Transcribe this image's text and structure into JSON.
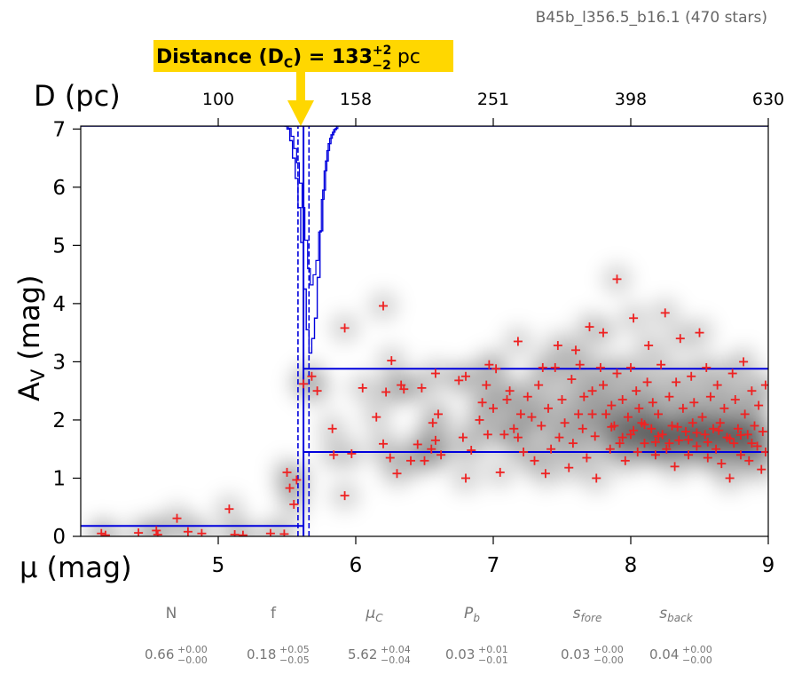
{
  "header": {
    "field_label": "B45b_l356.5_b16.1 (470 stars)"
  },
  "annotation": {
    "prefix": "Distance (D",
    "sub": "C",
    "mid": ") = 133",
    "sup": "+2",
    "subv": "−2",
    "unit": " pc",
    "value_pc": 133,
    "arrow_color": "#FFD700"
  },
  "chart_data": {
    "type": "scatter",
    "title": "",
    "xlabel": "μ (mag)",
    "ylabel_main": "A",
    "ylabel_sub": "V",
    "ylabel_unit": " (mag)",
    "top_axis_label": "D (pc)",
    "xlim": [
      4,
      9
    ],
    "ylim": [
      0,
      7.05
    ],
    "x_ticks": [
      5,
      6,
      7,
      8,
      9
    ],
    "y_ticks": [
      0,
      1,
      2,
      3,
      4,
      5,
      6,
      7
    ],
    "top_ticks": [
      {
        "mu": 5.0,
        "label": "100"
      },
      {
        "mu": 6.0,
        "label": "158"
      },
      {
        "mu": 7.0,
        "label": "251"
      },
      {
        "mu": 8.0,
        "label": "398"
      },
      {
        "mu": 9.0,
        "label": "630"
      }
    ],
    "colors": {
      "stars": "#ee2222",
      "model": "#0000dd",
      "density": "#000000"
    },
    "model": {
      "mu_c": 5.62,
      "mu_c_minus": 5.58,
      "mu_c_plus": 5.66,
      "foreground_av": 0.18,
      "background_av_low": 1.45,
      "background_av_high": 2.88
    },
    "distance_pdf": [
      [
        5.48,
        0.0
      ],
      [
        5.5,
        0.05
      ],
      [
        5.52,
        0.25
      ],
      [
        5.54,
        0.55
      ],
      [
        5.56,
        0.9
      ],
      [
        5.58,
        1.4
      ],
      [
        5.6,
        2.0
      ],
      [
        5.62,
        2.8
      ],
      [
        5.64,
        3.5
      ],
      [
        5.66,
        3.9
      ],
      [
        5.68,
        3.65
      ],
      [
        5.7,
        3.3
      ],
      [
        5.72,
        2.6
      ],
      [
        5.74,
        1.8
      ],
      [
        5.76,
        1.1
      ],
      [
        5.78,
        0.6
      ],
      [
        5.8,
        0.3
      ],
      [
        5.82,
        0.15
      ],
      [
        5.84,
        0.06
      ],
      [
        5.86,
        0.0
      ]
    ],
    "series": [
      {
        "values": [
          [
            4.15,
            0.05
          ],
          [
            4.18,
            0.02
          ],
          [
            4.42,
            0.06
          ],
          [
            4.55,
            0.1
          ],
          [
            4.56,
            0.03
          ],
          [
            4.7,
            0.31
          ],
          [
            4.78,
            0.08
          ],
          [
            4.88,
            0.05
          ],
          [
            5.08,
            0.47
          ],
          [
            5.12,
            0.03
          ],
          [
            5.18,
            0.02
          ],
          [
            5.38,
            0.05
          ],
          [
            5.48,
            0.04
          ],
          [
            5.52,
            0.83
          ],
          [
            5.55,
            0.55
          ],
          [
            5.57,
            0.97
          ],
          [
            5.5,
            1.1
          ],
          [
            5.62,
            2.62
          ],
          [
            5.68,
            2.75
          ],
          [
            5.72,
            2.5
          ],
          [
            5.83,
            1.85
          ],
          [
            5.84,
            1.4
          ],
          [
            5.92,
            3.58
          ],
          [
            5.92,
            0.7
          ],
          [
            5.97,
            1.42
          ],
          [
            6.05,
            2.55
          ],
          [
            6.2,
            3.96
          ],
          [
            6.22,
            2.48
          ],
          [
            6.26,
            3.02
          ],
          [
            6.2,
            1.59
          ],
          [
            6.15,
            2.05
          ],
          [
            6.25,
            1.35
          ],
          [
            6.3,
            1.08
          ],
          [
            6.33,
            2.6
          ],
          [
            6.35,
            2.53
          ],
          [
            6.4,
            1.3
          ],
          [
            6.45,
            1.58
          ],
          [
            6.48,
            2.55
          ],
          [
            6.5,
            1.3
          ],
          [
            6.55,
            1.5
          ],
          [
            6.56,
            1.95
          ],
          [
            6.58,
            2.8
          ],
          [
            6.6,
            2.1
          ],
          [
            6.58,
            1.65
          ],
          [
            6.62,
            1.4
          ],
          [
            6.75,
            2.68
          ],
          [
            6.78,
            1.7
          ],
          [
            6.8,
            2.75
          ],
          [
            6.8,
            1.0
          ],
          [
            6.84,
            1.48
          ],
          [
            6.9,
            2.0
          ],
          [
            6.92,
            2.3
          ],
          [
            6.95,
            2.6
          ],
          [
            6.96,
            1.75
          ],
          [
            6.97,
            2.95
          ],
          [
            7.0,
            2.2
          ],
          [
            7.02,
            2.88
          ],
          [
            7.05,
            1.1
          ],
          [
            7.08,
            1.75
          ],
          [
            7.1,
            2.35
          ],
          [
            7.12,
            2.5
          ],
          [
            7.15,
            1.85
          ],
          [
            7.18,
            1.7
          ],
          [
            7.2,
            2.1
          ],
          [
            7.18,
            3.35
          ],
          [
            7.22,
            1.45
          ],
          [
            7.25,
            2.4
          ],
          [
            7.28,
            2.05
          ],
          [
            7.3,
            1.3
          ],
          [
            7.33,
            2.6
          ],
          [
            7.35,
            1.9
          ],
          [
            7.36,
            2.9
          ],
          [
            7.38,
            1.08
          ],
          [
            7.4,
            2.2
          ],
          [
            7.42,
            1.5
          ],
          [
            7.45,
            2.9
          ],
          [
            7.47,
            3.28
          ],
          [
            7.48,
            1.7
          ],
          [
            7.5,
            2.35
          ],
          [
            7.52,
            1.95
          ],
          [
            7.55,
            1.18
          ],
          [
            7.57,
            2.7
          ],
          [
            7.58,
            1.6
          ],
          [
            7.6,
            3.2
          ],
          [
            7.62,
            2.1
          ],
          [
            7.63,
            2.95
          ],
          [
            7.65,
            1.85
          ],
          [
            7.66,
            2.4
          ],
          [
            7.68,
            1.35
          ],
          [
            7.7,
            3.6
          ],
          [
            7.72,
            2.5
          ],
          [
            7.72,
            2.1
          ],
          [
            7.74,
            1.72
          ],
          [
            7.75,
            1.0
          ],
          [
            7.78,
            2.9
          ],
          [
            7.8,
            3.5
          ],
          [
            7.8,
            2.6
          ],
          [
            7.82,
            2.1
          ],
          [
            7.85,
            1.5
          ],
          [
            7.86,
            2.25
          ],
          [
            7.88,
            1.9
          ],
          [
            7.9,
            2.8
          ],
          [
            7.9,
            4.42
          ],
          [
            7.92,
            1.6
          ],
          [
            7.94,
            2.35
          ],
          [
            7.96,
            1.3
          ],
          [
            7.98,
            2.05
          ],
          [
            8.0,
            2.9
          ],
          [
            8.0,
            1.75
          ],
          [
            8.02,
            3.75
          ],
          [
            8.04,
            2.5
          ],
          [
            8.05,
            1.45
          ],
          [
            8.06,
            2.2
          ],
          [
            8.08,
            1.95
          ],
          [
            8.1,
            1.6
          ],
          [
            8.12,
            2.65
          ],
          [
            8.13,
            3.28
          ],
          [
            8.15,
            1.85
          ],
          [
            8.16,
            2.3
          ],
          [
            8.18,
            1.4
          ],
          [
            8.2,
            2.1
          ],
          [
            8.22,
            2.95
          ],
          [
            8.23,
            1.75
          ],
          [
            8.25,
            3.84
          ],
          [
            8.26,
            1.5
          ],
          [
            8.28,
            2.4
          ],
          [
            8.3,
            1.9
          ],
          [
            8.32,
            1.2
          ],
          [
            8.33,
            2.65
          ],
          [
            8.35,
            1.65
          ],
          [
            8.36,
            3.4
          ],
          [
            8.38,
            2.2
          ],
          [
            8.4,
            1.8
          ],
          [
            8.42,
            1.4
          ],
          [
            8.44,
            2.75
          ],
          [
            8.45,
            1.95
          ],
          [
            8.46,
            2.3
          ],
          [
            8.48,
            1.55
          ],
          [
            8.5,
            3.5
          ],
          [
            8.52,
            2.05
          ],
          [
            8.54,
            1.75
          ],
          [
            8.55,
            2.9
          ],
          [
            8.56,
            1.35
          ],
          [
            8.58,
            2.4
          ],
          [
            8.6,
            1.85
          ],
          [
            8.62,
            1.5
          ],
          [
            8.63,
            2.6
          ],
          [
            8.65,
            1.95
          ],
          [
            8.66,
            1.25
          ],
          [
            8.68,
            2.2
          ],
          [
            8.7,
            1.7
          ],
          [
            8.72,
            1.0
          ],
          [
            8.74,
            2.8
          ],
          [
            8.75,
            1.6
          ],
          [
            8.76,
            2.35
          ],
          [
            8.78,
            1.85
          ],
          [
            8.8,
            1.4
          ],
          [
            8.82,
            3.0
          ],
          [
            8.83,
            2.1
          ],
          [
            8.85,
            1.75
          ],
          [
            8.86,
            1.3
          ],
          [
            8.88,
            2.5
          ],
          [
            8.9,
            1.9
          ],
          [
            8.92,
            1.55
          ],
          [
            8.93,
            2.25
          ],
          [
            8.95,
            1.15
          ],
          [
            8.96,
            1.8
          ],
          [
            8.98,
            2.6
          ],
          [
            8.98,
            1.45
          ],
          [
            8.2,
            1.72
          ],
          [
            8.28,
            1.6
          ],
          [
            8.34,
            1.88
          ],
          [
            8.42,
            1.66
          ],
          [
            8.48,
            1.78
          ],
          [
            8.56,
            1.62
          ],
          [
            8.64,
            1.82
          ],
          [
            8.72,
            1.68
          ],
          [
            8.8,
            1.74
          ],
          [
            8.88,
            1.6
          ],
          [
            7.86,
            1.88
          ],
          [
            7.94,
            1.7
          ],
          [
            8.02,
            1.82
          ],
          [
            8.1,
            1.92
          ],
          [
            8.18,
            1.62
          ]
        ]
      }
    ],
    "parameters": [
      {
        "name": "N",
        "value": "0.66",
        "plus": "+0.00",
        "minus": "−0.00",
        "italic": false
      },
      {
        "name": "f",
        "value": "0.18",
        "plus": "+0.05",
        "minus": "−0.05",
        "italic": false
      },
      {
        "name": "μ",
        "sub": "C",
        "value": "5.62",
        "plus": "+0.04",
        "minus": "−0.04",
        "italic": true
      },
      {
        "name": "P",
        "sub": "b",
        "value": "0.03",
        "plus": "+0.01",
        "minus": "−0.01",
        "italic": true
      },
      {
        "name": "s",
        "sub": "fore",
        "value": "0.03",
        "plus": "+0.00",
        "minus": "−0.00",
        "italic": true
      },
      {
        "name": "s",
        "sub": "back",
        "value": "0.04",
        "plus": "+0.00",
        "minus": "−0.00",
        "italic": true
      }
    ]
  }
}
